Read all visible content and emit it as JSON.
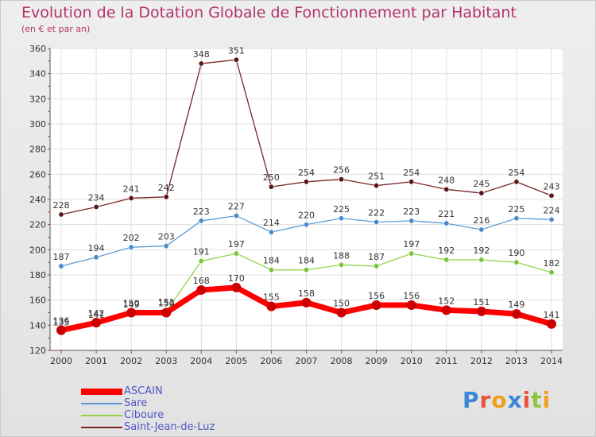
{
  "colors": {
    "title": "#b4336a",
    "legend_text": "#4d55c7",
    "ASCAIN": "#ff0000",
    "Sare": "#5b9bd5",
    "Ciboure": "#8fd44a",
    "Saint-Jean-de-Luz": "#7a2424"
  },
  "logo": {
    "text": "Proxiti"
  },
  "chart_data": {
    "type": "line",
    "title": "Evolution de la Dotation Globale de Fonctionnement par Habitant",
    "subtitle": "(en € et par an)",
    "xlabel": "",
    "ylabel": "",
    "x": [
      "2000",
      "2001",
      "2002",
      "2003",
      "2004",
      "2005",
      "2006",
      "2007",
      "2008",
      "2009",
      "2010",
      "2011",
      "2012",
      "2013",
      "2014"
    ],
    "ylim": [
      120,
      360
    ],
    "yticks": [
      120,
      140,
      160,
      180,
      200,
      220,
      240,
      260,
      280,
      300,
      320,
      340,
      360
    ],
    "grid": true,
    "legend": "bottom-left",
    "series": [
      {
        "name": "ASCAIN",
        "values": [
          136,
          142,
          150,
          150,
          168,
          170,
          155,
          158,
          150,
          156,
          156,
          152,
          151,
          149,
          141
        ]
      },
      {
        "name": "Sare",
        "values": [
          187,
          194,
          202,
          203,
          223,
          227,
          214,
          220,
          225,
          222,
          223,
          221,
          216,
          225,
          224
        ]
      },
      {
        "name": "Ciboure",
        "values": [
          135,
          141,
          149,
          151,
          191,
          197,
          184,
          184,
          188,
          187,
          197,
          192,
          192,
          190,
          182
        ]
      },
      {
        "name": "Saint-Jean-de-Luz",
        "values": [
          228,
          234,
          241,
          242,
          348,
          351,
          250,
          254,
          256,
          251,
          254,
          248,
          245,
          254,
          243
        ]
      }
    ]
  }
}
